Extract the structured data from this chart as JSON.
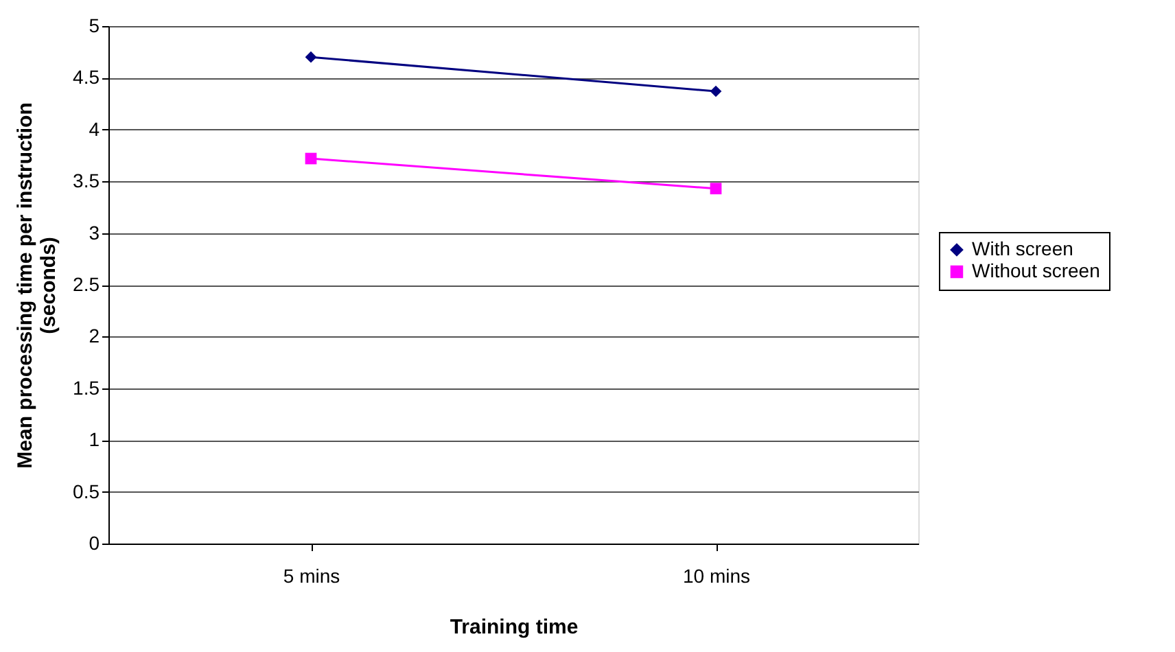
{
  "chart_data": {
    "type": "line",
    "xlabel": "Training time",
    "ylabel": "Mean processing time per instruction (seconds)",
    "categories": [
      "5 mins",
      "10 mins"
    ],
    "series": [
      {
        "name": "With screen",
        "color": "#000080",
        "marker": "diamond",
        "values": [
          4.7,
          4.37
        ]
      },
      {
        "name": "Without screen",
        "color": "#ff00ff",
        "marker": "square",
        "values": [
          3.72,
          3.43
        ]
      }
    ],
    "ylim": [
      0,
      5
    ],
    "yticks": [
      0,
      0.5,
      1,
      1.5,
      2,
      2.5,
      3,
      3.5,
      4,
      4.5,
      5
    ],
    "grid": "y",
    "legend": "right"
  }
}
